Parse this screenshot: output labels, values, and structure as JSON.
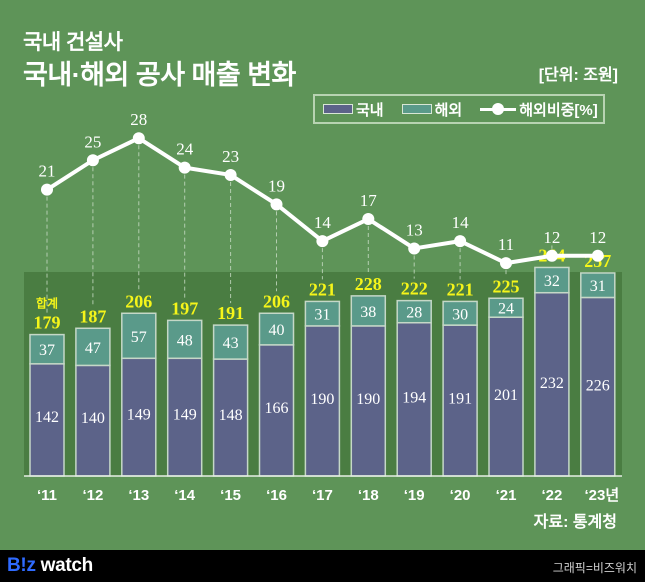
{
  "header": {
    "title_line1": "국내 건설사",
    "title_line2": "국내·해외 공사 매출 변화",
    "unit": "[단위: 조원]"
  },
  "legend": {
    "items": [
      {
        "label": "국내",
        "type": "swatch",
        "color": "#5c6389"
      },
      {
        "label": "해외",
        "type": "swatch",
        "color": "#5a9a8a"
      },
      {
        "label": "해외비중[%]",
        "type": "line-marker",
        "color": "#ffffff"
      }
    ]
  },
  "total_prefix": "합계",
  "source": "자료: 통계청",
  "footer": {
    "brand_part1": "B!z",
    "brand_part2": " watch",
    "credit": "그래픽=비즈워치"
  },
  "colors": {
    "background": "#5e9458",
    "plot_background": "#4a7d42",
    "domestic": "#5c6389",
    "overseas": "#5a9a8a",
    "bar_border": "#c5d8c7",
    "total_label": "#f5f51a",
    "line": "#ffffff"
  },
  "chart_data": {
    "type": "bar",
    "subtype": "stacked bar + line",
    "title": "국내·해외 공사 매출 변화",
    "unit": "조원",
    "categories": [
      "'11",
      "'12",
      "'13",
      "'14",
      "'15",
      "'16",
      "'17",
      "'18",
      "'19",
      "'20",
      "'21",
      "'22",
      "'23년"
    ],
    "series": [
      {
        "name": "국내",
        "type": "bar",
        "values": [
          142,
          140,
          149,
          149,
          148,
          166,
          190,
          190,
          194,
          191,
          201,
          232,
          226
        ]
      },
      {
        "name": "해외",
        "type": "bar",
        "values": [
          37,
          47,
          57,
          48,
          43,
          40,
          31,
          38,
          28,
          30,
          24,
          32,
          31
        ]
      },
      {
        "name": "해외비중[%]",
        "type": "line",
        "values": [
          21,
          25,
          28,
          24,
          23,
          19,
          14,
          17,
          13,
          14,
          11,
          12,
          12
        ]
      }
    ],
    "totals": [
      179,
      187,
      206,
      197,
      191,
      206,
      221,
      228,
      222,
      221,
      225,
      264,
      257
    ],
    "xlabel": "",
    "ylabel": "",
    "legend_position": "top-right",
    "grid": false
  }
}
